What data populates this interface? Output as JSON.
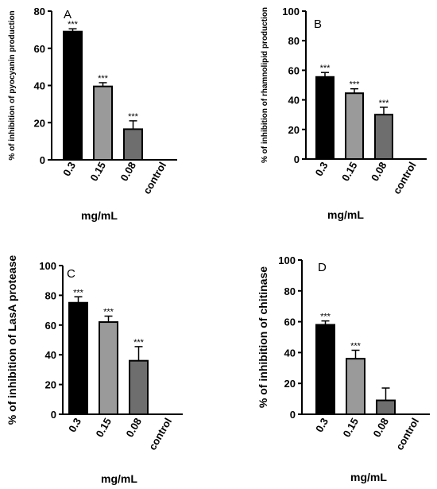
{
  "chart_data": [
    {
      "type": "bar",
      "panel_label": "A",
      "categories": [
        "0.3",
        "0.15",
        "0.08",
        "control"
      ],
      "values": [
        69,
        39.5,
        16.5,
        0
      ],
      "errors": [
        1.5,
        2,
        4.5,
        0
      ],
      "significance": [
        "***",
        "***",
        "***",
        ""
      ],
      "colors": [
        "#000000",
        "#9a9a9a",
        "#6e6e6e",
        "#ffffff"
      ],
      "xlabel": "mg/mL",
      "ylabel": "% of inhibition of pyocyanin production",
      "ylim": [
        0,
        80
      ],
      "yticks": [
        0,
        20,
        40,
        60,
        80
      ],
      "grid": false
    },
    {
      "type": "bar",
      "panel_label": "B",
      "categories": [
        "0.3",
        "0.15",
        "0.08",
        "control"
      ],
      "values": [
        55.5,
        44.5,
        30,
        0
      ],
      "errors": [
        3,
        3,
        5,
        0
      ],
      "significance": [
        "***",
        "***",
        "***",
        ""
      ],
      "colors": [
        "#000000",
        "#9a9a9a",
        "#6e6e6e",
        "#ffffff"
      ],
      "xlabel": "mg/mL",
      "ylabel": "% of inhibition of rhamnolipid production",
      "ylim": [
        0,
        100
      ],
      "yticks": [
        0,
        20,
        40,
        60,
        80,
        100
      ],
      "grid": false
    },
    {
      "type": "bar",
      "panel_label": "C",
      "categories": [
        "0.3",
        "0.15",
        "0.08",
        "control"
      ],
      "values": [
        75,
        62,
        36,
        0
      ],
      "errors": [
        4,
        4,
        9.5,
        0
      ],
      "significance": [
        "***",
        "***",
        "***",
        ""
      ],
      "colors": [
        "#000000",
        "#9a9a9a",
        "#6e6e6e",
        "#ffffff"
      ],
      "xlabel": "mg/mL",
      "ylabel": "% of inhibition of LasA protease",
      "ylim": [
        0,
        100
      ],
      "yticks": [
        0,
        20,
        40,
        60,
        80,
        100
      ],
      "grid": false
    },
    {
      "type": "bar",
      "panel_label": "D",
      "categories": [
        "0.3",
        "0.15",
        "0.08",
        "control"
      ],
      "values": [
        58,
        36,
        9,
        0
      ],
      "errors": [
        2.5,
        5.5,
        8,
        0
      ],
      "significance": [
        "***",
        "***",
        "",
        ""
      ],
      "colors": [
        "#000000",
        "#9a9a9a",
        "#6e6e6e",
        "#ffffff"
      ],
      "xlabel": "mg/mL",
      "ylabel": "% of inhibition of chitinase",
      "ylim": [
        0,
        100
      ],
      "yticks": [
        0,
        20,
        40,
        60,
        80,
        100
      ],
      "grid": false
    }
  ]
}
